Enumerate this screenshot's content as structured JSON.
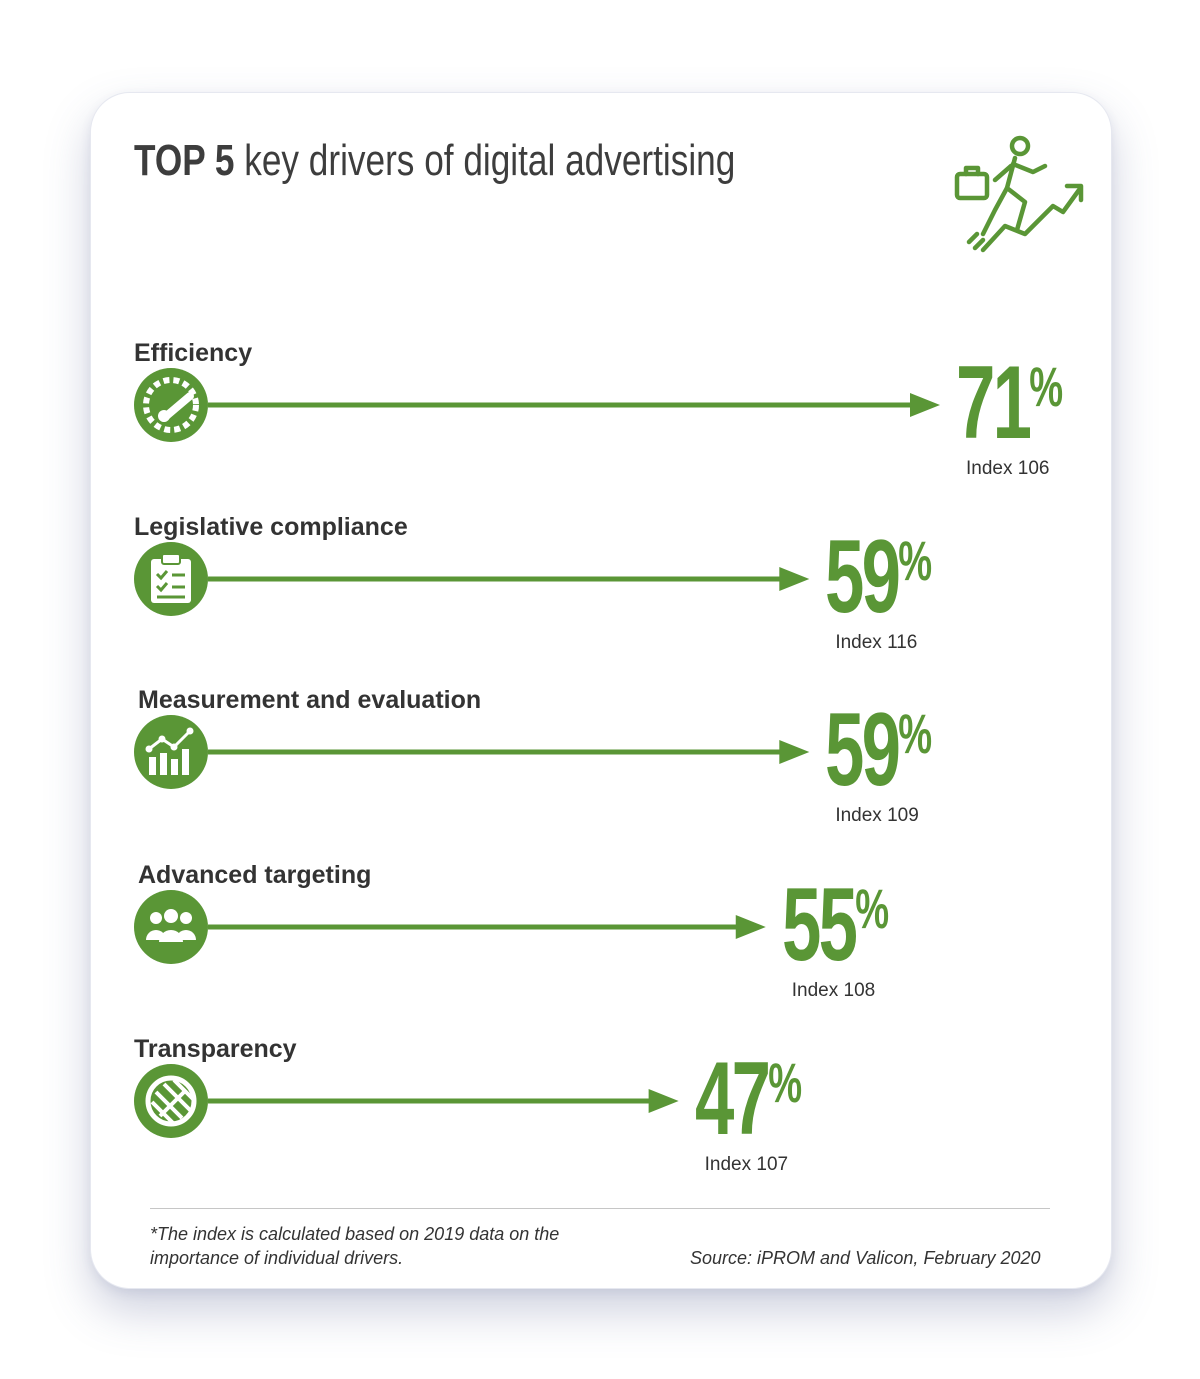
{
  "title": {
    "prefix": "TOP 5",
    "rest": "key drivers of digital advertising"
  },
  "colors": {
    "accent": "#5a9636",
    "text": "#333333"
  },
  "hero_icon": "businessman-climbing-growth-arrow-icon",
  "chart_data": {
    "type": "bar",
    "orientation": "horizontal",
    "title": "TOP 5 key drivers of digital advertising",
    "unit": "%",
    "xlim": [
      0,
      71
    ],
    "categories": [
      "Efficiency",
      "Legislative compliance",
      "Measurement and evaluation",
      "Advanced targeting",
      "Transparency"
    ],
    "values": [
      71,
      59,
      59,
      55,
      47
    ],
    "value_labels": [
      "71%",
      "59%",
      "59%",
      "55%",
      "47%"
    ],
    "index_labels": [
      "Index 106",
      "Index 116",
      "Index 109",
      "Index 108",
      "Index 107"
    ],
    "icons": [
      "speedometer-icon",
      "clipboard-checklist-icon",
      "growth-chart-icon",
      "audience-group-icon",
      "globe-transparency-icon"
    ]
  },
  "footer": {
    "note": "*The index is calculated based on 2019 data on the importance of individual drivers.",
    "source": "Source: iPROM and Valicon, February 2020"
  }
}
